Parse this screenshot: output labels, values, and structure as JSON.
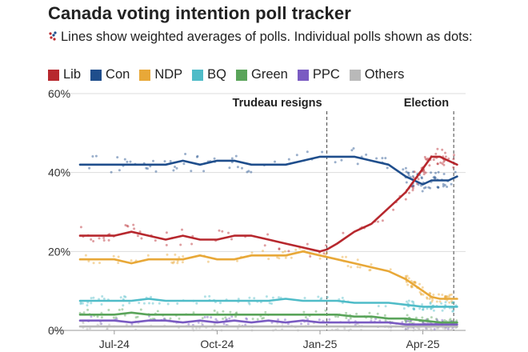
{
  "title": "Canada voting intention poll tracker",
  "subtitle": "Lines show weighted averages of polls. Individual polls shown as dots:",
  "legend": [
    {
      "label": "Lib",
      "color": "#b7282e"
    },
    {
      "label": "Con",
      "color": "#1f4e8c"
    },
    {
      "label": "NDP",
      "color": "#e8a838"
    },
    {
      "label": "BQ",
      "color": "#4fbcc8"
    },
    {
      "label": "Green",
      "color": "#5aa45a"
    },
    {
      "label": "PPC",
      "color": "#7a5bc2"
    },
    {
      "label": "Others",
      "color": "#b9b9b9"
    }
  ],
  "chart_data": {
    "type": "line",
    "title": "Canada voting intention poll tracker",
    "xlabel": "",
    "ylabel": "",
    "x_range": [
      0,
      11.2
    ],
    "x_unit": "months since 2024-06-01",
    "ylim": [
      0,
      60
    ],
    "y_ticks": [
      {
        "value": 0,
        "label": "0%"
      },
      {
        "value": 20,
        "label": "20%"
      },
      {
        "value": 40,
        "label": "40%"
      },
      {
        "value": 60,
        "label": "60%"
      }
    ],
    "x_ticks": [
      {
        "value": 1,
        "label": "Jul-24"
      },
      {
        "value": 4,
        "label": "Oct-24"
      },
      {
        "value": 7,
        "label": "Jan-25"
      },
      {
        "value": 10,
        "label": "Apr-25"
      }
    ],
    "annotations": [
      {
        "label": "Trudeau resigns",
        "x": 7.2
      },
      {
        "label": "Election",
        "x": 10.9
      }
    ],
    "series": [
      {
        "name": "Lib",
        "color": "#b7282e",
        "x": [
          0,
          0.5,
          1,
          1.5,
          2,
          2.5,
          3,
          3.5,
          4,
          4.5,
          5,
          5.5,
          6,
          6.5,
          7,
          7.2,
          7.5,
          8,
          8.5,
          9,
          9.5,
          10,
          10.25,
          10.5,
          10.75,
          11
        ],
        "y": [
          24,
          24,
          24,
          25,
          24,
          23,
          24,
          23,
          23,
          24,
          24,
          23,
          22,
          21,
          20,
          20.5,
          22,
          25,
          27,
          31,
          35,
          41,
          44,
          44,
          43,
          42
        ]
      },
      {
        "name": "Con",
        "color": "#1f4e8c",
        "x": [
          0,
          0.5,
          1,
          1.5,
          2,
          2.5,
          3,
          3.5,
          4,
          4.5,
          5,
          5.5,
          6,
          6.5,
          7,
          7.5,
          8,
          8.5,
          9,
          9.5,
          10,
          10.25,
          10.5,
          10.75,
          11
        ],
        "y": [
          42,
          42,
          42,
          42,
          42,
          42,
          43,
          42,
          43,
          43,
          42,
          42,
          42,
          43,
          44,
          44,
          44,
          43,
          42,
          39,
          37,
          38,
          38,
          38,
          39
        ]
      },
      {
        "name": "NDP",
        "color": "#e8a838",
        "x": [
          0,
          0.5,
          1,
          1.5,
          2,
          2.5,
          3,
          3.5,
          4,
          4.5,
          5,
          5.5,
          6,
          6.5,
          7,
          7.5,
          8,
          8.5,
          9,
          9.5,
          10,
          10.25,
          10.5,
          10.75,
          11
        ],
        "y": [
          18,
          18,
          18,
          17,
          18,
          18,
          18,
          19,
          18,
          18,
          19,
          19,
          19,
          20,
          19,
          18,
          17,
          16,
          15,
          13,
          10,
          8.5,
          8,
          8,
          8
        ]
      },
      {
        "name": "BQ",
        "color": "#4fbcc8",
        "x": [
          0,
          0.5,
          1,
          1.5,
          2,
          2.5,
          3,
          3.5,
          4,
          4.5,
          5,
          5.5,
          6,
          6.5,
          7,
          7.5,
          8,
          8.5,
          9,
          9.5,
          10,
          10.5,
          11
        ],
        "y": [
          7.5,
          7.5,
          7.5,
          7.5,
          8,
          7.5,
          7.5,
          7.5,
          7.5,
          7.5,
          7.5,
          7.5,
          8,
          7.5,
          7.5,
          7.5,
          7,
          7,
          7,
          6.5,
          6,
          6,
          6
        ]
      },
      {
        "name": "Green",
        "color": "#5aa45a",
        "x": [
          0,
          0.5,
          1,
          1.5,
          2,
          2.5,
          3,
          3.5,
          4,
          4.5,
          5,
          5.5,
          6,
          6.5,
          7,
          7.5,
          8,
          8.5,
          9,
          9.5,
          10,
          10.5,
          11
        ],
        "y": [
          4,
          4,
          4,
          4.5,
          4,
          4,
          4,
          4,
          4,
          4,
          4,
          4,
          4,
          4,
          4,
          4,
          3.5,
          3.5,
          3,
          3,
          2.5,
          2,
          2
        ]
      },
      {
        "name": "PPC",
        "color": "#7a5bc2",
        "x": [
          0,
          0.5,
          1,
          1.5,
          2,
          2.5,
          3,
          3.5,
          4,
          4.5,
          5,
          5.5,
          6,
          6.5,
          7,
          7.5,
          8,
          8.5,
          9,
          9.5,
          10,
          10.5,
          11
        ],
        "y": [
          2.5,
          2.5,
          2.5,
          2,
          2.5,
          2.5,
          2,
          2.5,
          2,
          2.5,
          2,
          2.5,
          2,
          2.5,
          2,
          2,
          2,
          2,
          2,
          1.5,
          1.5,
          1.5,
          1.5
        ]
      },
      {
        "name": "Others",
        "color": "#b9b9b9",
        "x": [
          0,
          1,
          2,
          3,
          4,
          5,
          6,
          7,
          8,
          9,
          10,
          11
        ],
        "y": [
          1,
          1,
          1,
          1,
          1,
          1,
          1,
          1,
          1,
          1,
          1,
          1
        ]
      }
    ]
  }
}
